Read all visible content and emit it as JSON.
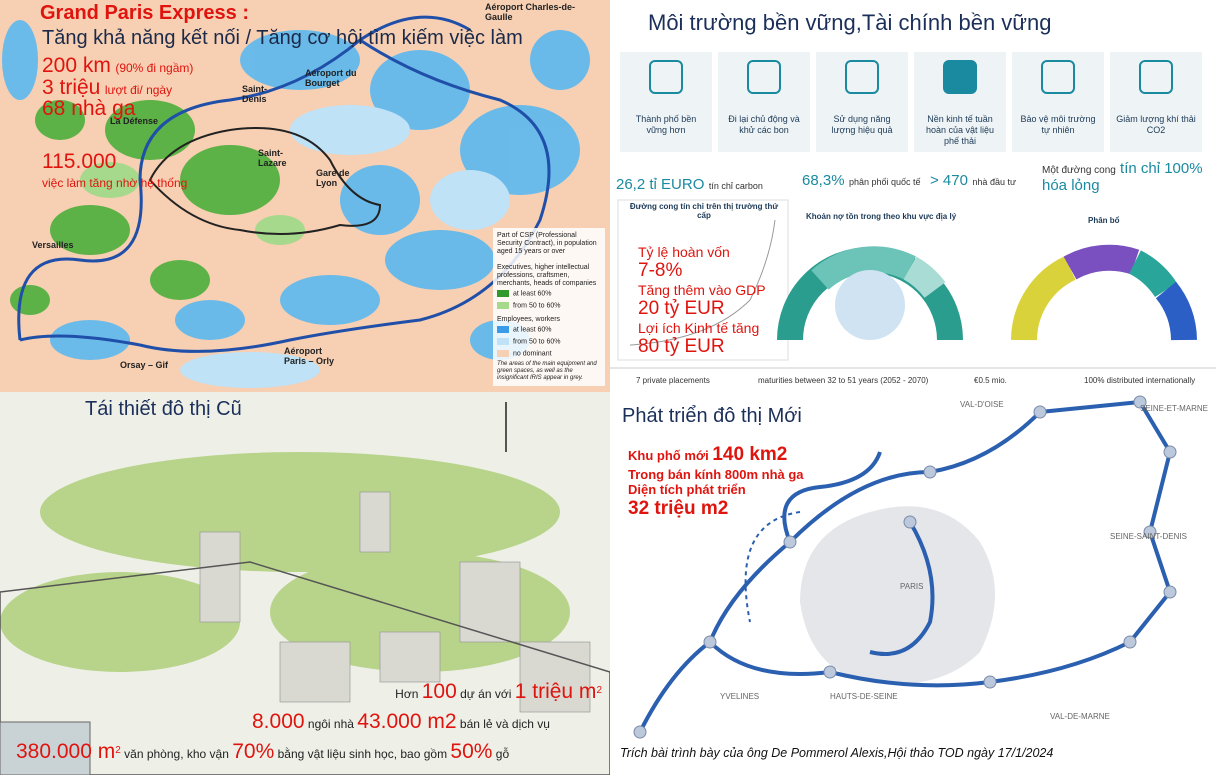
{
  "top_left": {
    "title": "Grand Paris Express :",
    "subtitle": "Tăng khả năng kết nối / Tăng cơ hội tìm kiếm việc làm",
    "stats": [
      {
        "value": "200 km",
        "note": "(90% đi ngầm)"
      },
      {
        "value": "3 triệu",
        "note": "lượt đi/ ngày"
      },
      {
        "value": "68 nhà ga"
      }
    ],
    "jobs": {
      "value": "115.000",
      "note": "việc làm tăng nhờ hệ thống"
    },
    "places": [
      "Aéroport Charles-de-Gaulle",
      "Aéroport du Bourget",
      "Saint-Denis",
      "La Défense",
      "Saint-Lazare",
      "Gare de Lyon",
      "Versailles",
      "Orsay – Gif",
      "Aéroport Paris – Orly"
    ],
    "legend": {
      "heading": "Part of CSP (Professional Security Contract), in population aged 15 years or over",
      "groups": [
        {
          "name": "Executives, higher intellectual professions, craftsmen, merchants, heads of companies",
          "items": [
            "at least 60%",
            "from 50 to 60%"
          ]
        },
        {
          "name": "Employees, workers",
          "items": [
            "at least 60%",
            "from 50 to 60%"
          ]
        }
      ],
      "other": "no dominant",
      "note": "The areas of the main equipment and green spaces, as well as the insignificant IRIS appear in grey."
    }
  },
  "top_right": {
    "title": "Môi trường  bền vững,Tài chính bền vững",
    "icons": [
      "Thành phố bền vững hơn",
      "Đi lại chủ động và khử các bon",
      "Sử dụng năng lượng hiệu quả",
      "Nền kinh tế tuần hoàn của vật liệu phế thải",
      "Bảo vệ môi trường tự nhiên",
      "Giảm lượng khí thải CO2"
    ],
    "stats": [
      {
        "value": "26,2 tỉ EURO",
        "note": "tín chỉ carbon"
      },
      {
        "value": "68,3%",
        "note": "phân phối quốc tế"
      },
      {
        "value": "> 470",
        "note": "nhà đầu tư"
      }
    ],
    "curve": {
      "prefix": "Một đường cong",
      "value": "tín chỉ 100%",
      "suffix": "hóa lỏng"
    },
    "panels": [
      "Đường cong tín chỉ trên thị trường thứ cấp",
      "Khoản nợ tồn trong theo khu vực địa lý",
      "Phân bổ"
    ],
    "benefits": [
      "Tỷ lệ hoàn vốn",
      "7-8%",
      "Tăng thêm vào GDP",
      "20 tỷ EUR",
      "Lợi ích Kinh tế tăng",
      "80 tỷ EUR"
    ],
    "footer": [
      "7 private placements",
      "maturities between 32 to 51 years (2052 - 2070)",
      "€0.5 mio.",
      "100% distributed internationally"
    ]
  },
  "bottom_left": {
    "title": "Tái thiết đô thị Cũ",
    "line1": [
      "Hơn",
      "100",
      "dự án",
      "với",
      "1 triệu m",
      "2"
    ],
    "line2": [
      "8.000",
      "ngôi nhà",
      "43.000 m2",
      "bán lẻ và dịch vụ"
    ],
    "line3": [
      "380.000 m",
      "2",
      "văn phòng, kho vận",
      "70%",
      "bằng vật liệu sinh học, bao gồm",
      "50%",
      "gỗ"
    ]
  },
  "bottom_right": {
    "title": "Phát triển đô thị Mới",
    "lines": [
      {
        "text": "Khu phố mới",
        "value": "140 km2"
      },
      {
        "text": "Trong bán kính 800m nhà ga"
      },
      {
        "text": "Diện tích phát triển"
      },
      {
        "value": "32 triệu m2"
      }
    ],
    "regions": [
      "VAL-D'OISE",
      "SEINE-SAINT-DENIS",
      "SEINE-ET-MARNE",
      "PARIS",
      "HAUTS-DE-SEINE",
      "YVELINES",
      "VAL-DE-MARNE"
    ],
    "credit": "Trích bài trình bày  của ông De Pommerol Alexis,Hội thảo TOD ngày 17/1/2024"
  }
}
